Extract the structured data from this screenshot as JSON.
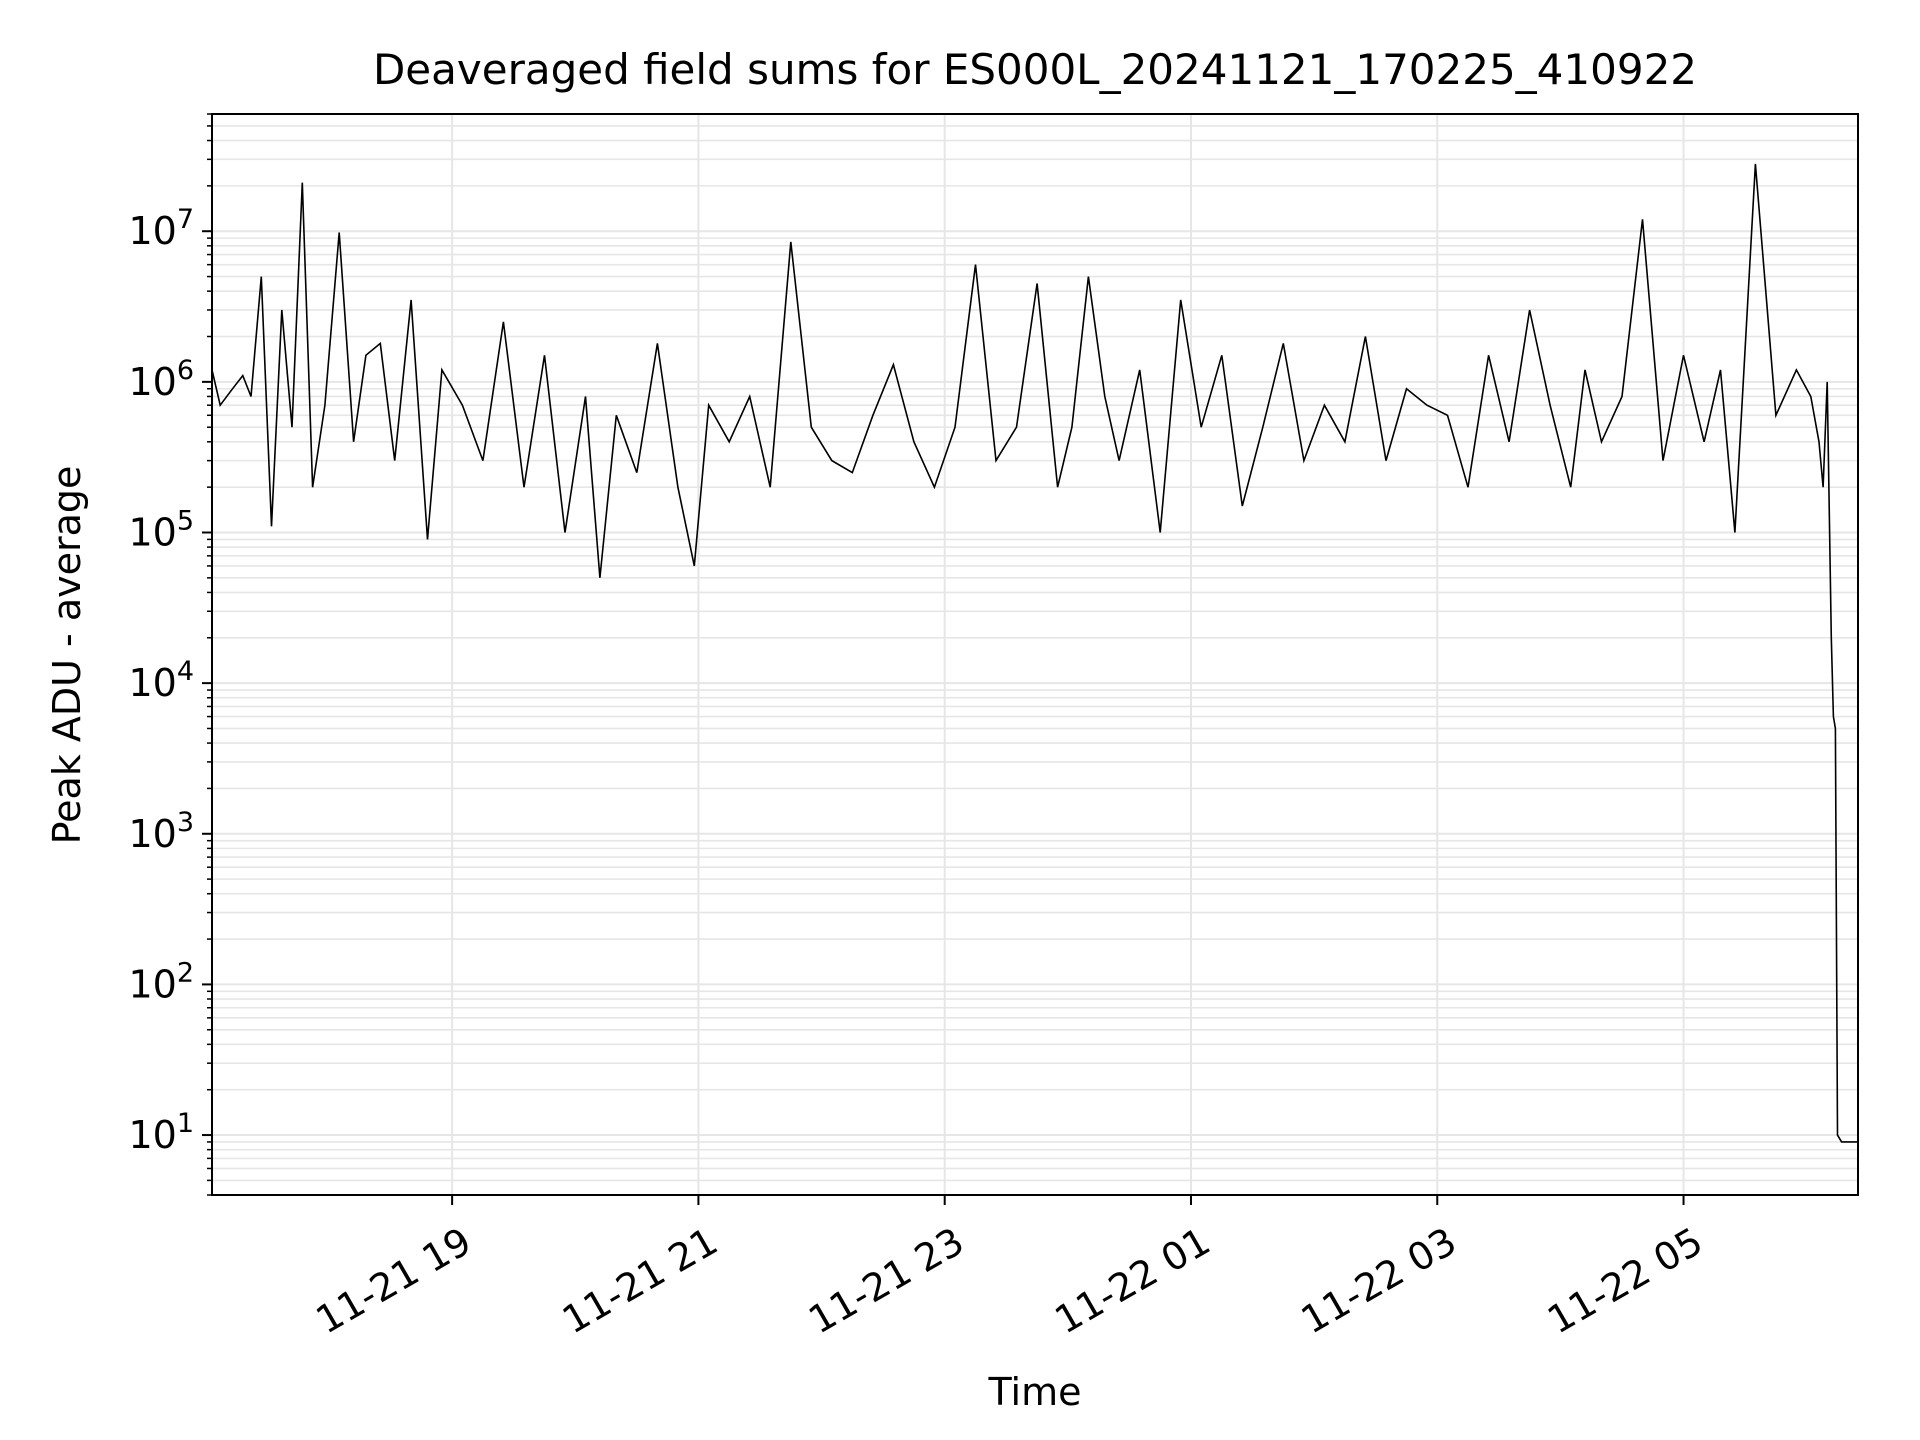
{
  "chart_data": {
    "type": "line",
    "title": "Deaveraged field sums for ES000L_20241121_170225_410922",
    "xlabel": "Time",
    "ylabel": "Peak ADU - average",
    "yscale": "log",
    "ylim": [
      4,
      60000000
    ],
    "xlim": [
      "2024-11-21 17:03",
      "2024-11-22 06:25"
    ],
    "grid": true,
    "line_color": "#000000",
    "grid_color": "#e6e6e6",
    "x_ticks": [
      {
        "label": "11-21 19",
        "value": "2024-11-21 19:00"
      },
      {
        "label": "11-21 21",
        "value": "2024-11-21 21:00"
      },
      {
        "label": "11-21 23",
        "value": "2024-11-21 23:00"
      },
      {
        "label": "11-22 01",
        "value": "2024-11-22 01:00"
      },
      {
        "label": "11-22 03",
        "value": "2024-11-22 03:00"
      },
      {
        "label": "11-22 05",
        "value": "2024-11-22 05:00"
      }
    ],
    "y_ticks": [
      {
        "base": "10",
        "exp": "1",
        "value": 10
      },
      {
        "base": "10",
        "exp": "2",
        "value": 100
      },
      {
        "base": "10",
        "exp": "3",
        "value": 1000
      },
      {
        "base": "10",
        "exp": "4",
        "value": 10000
      },
      {
        "base": "10",
        "exp": "5",
        "value": 100000
      },
      {
        "base": "10",
        "exp": "6",
        "value": 1000000
      },
      {
        "base": "10",
        "exp": "7",
        "value": 10000000
      }
    ],
    "series": [
      {
        "x": [
          "2024-11-21 17:03",
          "2024-11-21 17:07",
          "2024-11-21 17:13",
          "2024-11-21 17:18",
          "2024-11-21 17:22",
          "2024-11-21 17:27",
          "2024-11-21 17:32",
          "2024-11-21 17:37",
          "2024-11-21 17:42",
          "2024-11-21 17:47",
          "2024-11-21 17:52",
          "2024-11-21 17:58",
          "2024-11-21 18:05",
          "2024-11-21 18:12",
          "2024-11-21 18:18",
          "2024-11-21 18:25",
          "2024-11-21 18:32",
          "2024-11-21 18:40",
          "2024-11-21 18:48",
          "2024-11-21 18:55",
          "2024-11-21 19:05",
          "2024-11-21 19:15",
          "2024-11-21 19:25",
          "2024-11-21 19:35",
          "2024-11-21 19:45",
          "2024-11-21 19:55",
          "2024-11-21 20:05",
          "2024-11-21 20:12",
          "2024-11-21 20:20",
          "2024-11-21 20:30",
          "2024-11-21 20:40",
          "2024-11-21 20:50",
          "2024-11-21 20:58",
          "2024-11-21 21:05",
          "2024-11-21 21:15",
          "2024-11-21 21:25",
          "2024-11-21 21:35",
          "2024-11-21 21:45",
          "2024-11-21 21:55",
          "2024-11-21 22:05",
          "2024-11-21 22:15",
          "2024-11-21 22:25",
          "2024-11-21 22:35",
          "2024-11-21 22:45",
          "2024-11-21 22:55",
          "2024-11-21 23:05",
          "2024-11-21 23:15",
          "2024-11-21 23:25",
          "2024-11-21 23:35",
          "2024-11-21 23:45",
          "2024-11-21 23:55",
          "2024-11-22 00:02",
          "2024-11-22 00:10",
          "2024-11-22 00:18",
          "2024-11-22 00:25",
          "2024-11-22 00:35",
          "2024-11-22 00:45",
          "2024-11-22 00:55",
          "2024-11-22 01:05",
          "2024-11-22 01:15",
          "2024-11-22 01:25",
          "2024-11-22 01:35",
          "2024-11-22 01:45",
          "2024-11-22 01:55",
          "2024-11-22 02:05",
          "2024-11-22 02:15",
          "2024-11-22 02:25",
          "2024-11-22 02:35",
          "2024-11-22 02:45",
          "2024-11-22 02:55",
          "2024-11-22 03:05",
          "2024-11-22 03:15",
          "2024-11-22 03:25",
          "2024-11-22 03:35",
          "2024-11-22 03:45",
          "2024-11-22 03:55",
          "2024-11-22 04:05",
          "2024-11-22 04:12",
          "2024-11-22 04:20",
          "2024-11-22 04:30",
          "2024-11-22 04:40",
          "2024-11-22 04:50",
          "2024-11-22 05:00",
          "2024-11-22 05:10",
          "2024-11-22 05:18",
          "2024-11-22 05:25",
          "2024-11-22 05:35",
          "2024-11-22 05:45",
          "2024-11-22 05:55",
          "2024-11-22 06:02",
          "2024-11-22 06:06",
          "2024-11-22 06:08",
          "2024-11-22 06:10",
          "2024-11-22 06:12",
          "2024-11-22 06:13",
          "2024-11-22 06:14",
          "2024-11-22 06:15",
          "2024-11-22 06:17",
          "2024-11-22 06:20",
          "2024-11-22 06:22",
          "2024-11-22 06:25"
        ],
        "values": [
          1200000,
          700000,
          900000,
          1100000,
          800000,
          5000000,
          110000,
          3000000,
          500000,
          21000000,
          200000,
          700000,
          9800000,
          400000,
          1500000,
          1800000,
          300000,
          3500000,
          90000,
          1200000,
          700000,
          300000,
          2500000,
          200000,
          1500000,
          100000,
          800000,
          50000,
          600000,
          250000,
          1800000,
          200000,
          60000,
          700000,
          400000,
          800000,
          200000,
          8500000,
          500000,
          300000,
          250000,
          600000,
          1300000,
          400000,
          200000,
          500000,
          6000000,
          300000,
          500000,
          4500000,
          200000,
          500000,
          5000000,
          800000,
          300000,
          1200000,
          100000,
          3500000,
          500000,
          1500000,
          150000,
          500000,
          1800000,
          300000,
          700000,
          400000,
          2000000,
          300000,
          900000,
          700000,
          600000,
          200000,
          1500000,
          400000,
          3000000,
          700000,
          200000,
          1200000,
          400000,
          800000,
          12000000,
          300000,
          1500000,
          400000,
          1200000,
          100000,
          28000000,
          600000,
          1200000,
          800000,
          400000,
          200000,
          1000000,
          20000,
          6000,
          5000,
          10,
          9,
          9,
          9,
          9
        ]
      }
    ]
  }
}
